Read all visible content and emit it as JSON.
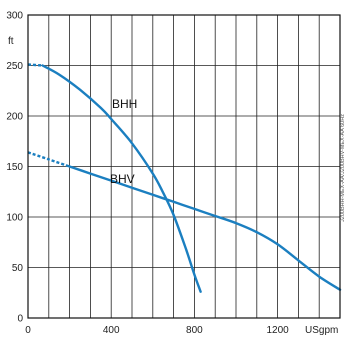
{
  "chart_data": {
    "type": "line",
    "title": "",
    "xlabel": "",
    "ylabel": "",
    "x_unit": "USgpm",
    "y_unit": "ft",
    "xlim": [
      0,
      1500
    ],
    "ylim": [
      0,
      300
    ],
    "x_ticks": [
      0,
      400,
      800,
      1200
    ],
    "y_ticks": [
      0,
      50,
      100,
      150,
      200,
      250,
      300
    ],
    "grid": true,
    "side_note": "J200BHH-MEX-AA/J200BHV-MEX-AA 60Hz",
    "series": [
      {
        "name": "BHH",
        "color": "#1b7fc0",
        "dashed_until": 70,
        "x": [
          0,
          70,
          150,
          250,
          350,
          400,
          500,
          600,
          650,
          700,
          760,
          800,
          830
        ],
        "y": [
          251,
          250,
          241,
          226,
          208,
          197,
          173,
          143,
          124,
          102,
          68,
          43,
          26
        ]
      },
      {
        "name": "BHV",
        "color": "#1b7fc0",
        "dashed_until": 200,
        "x": [
          0,
          100,
          200,
          300,
          400,
          500,
          600,
          700,
          800,
          900,
          1000,
          1100,
          1200,
          1300,
          1400,
          1500
        ],
        "y": [
          164,
          157,
          150,
          143,
          136,
          129,
          122,
          115,
          108,
          101,
          94,
          85,
          73,
          57,
          41,
          28
        ]
      }
    ]
  }
}
